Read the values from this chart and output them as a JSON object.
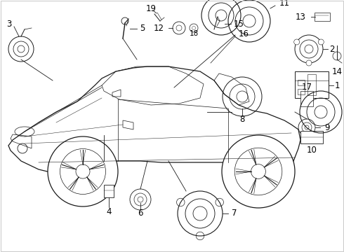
{
  "background_color": "#ffffff",
  "line_color": "#1a1a1a",
  "fig_width": 4.9,
  "fig_height": 3.6,
  "dpi": 100,
  "border_color": "#cccccc",
  "callout_line_color": "#333333",
  "font_size": 8.5
}
